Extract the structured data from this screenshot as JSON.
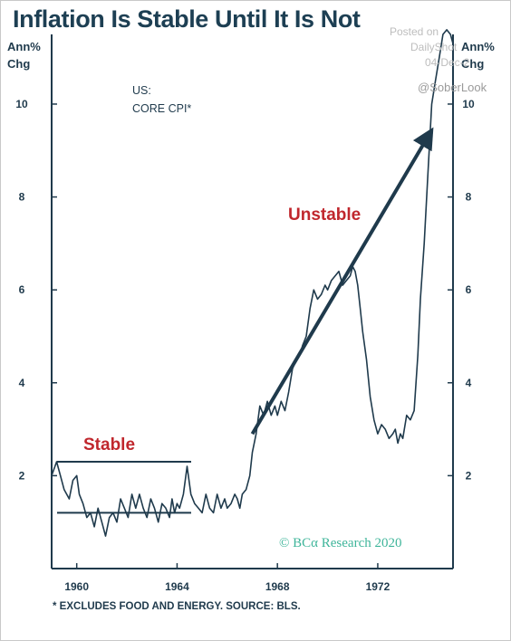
{
  "page": {
    "title": "Inflation Is Stable Until It Is Not",
    "unit_left": [
      "Ann%",
      "Chg"
    ],
    "unit_right": [
      "Ann%",
      "Chg"
    ],
    "watermark": [
      "Posted on",
      "DailyShot",
      "04-Dec-2"
    ],
    "social_handle": "@SoberLook",
    "footnote": "* EXCLUDES FOOD AND ENERGY. SOURCE: BLS.",
    "copyright": "© BCα Research 2020",
    "colors": {
      "title": "#1d3f53",
      "line": "#1f3a4c",
      "annotation": "#c0272d",
      "copyright": "#3fb59a"
    }
  },
  "chart_data": {
    "type": "line",
    "title": "Inflation Is Stable Until It Is Not",
    "series": [
      {
        "name": "CORE CPI*",
        "x": [
          1959.0,
          1959.2,
          1959.35,
          1959.5,
          1959.7,
          1959.85,
          1960.0,
          1960.1,
          1960.25,
          1960.4,
          1960.55,
          1960.7,
          1960.85,
          1961.0,
          1961.15,
          1961.3,
          1961.45,
          1961.6,
          1961.75,
          1961.9,
          1962.05,
          1962.2,
          1962.35,
          1962.5,
          1962.65,
          1962.8,
          1962.95,
          1963.1,
          1963.25,
          1963.4,
          1963.55,
          1963.7,
          1963.8,
          1963.9,
          1964.0,
          1964.1,
          1964.25,
          1964.4,
          1964.55,
          1964.7,
          1964.85,
          1965.0,
          1965.15,
          1965.3,
          1965.45,
          1965.6,
          1965.75,
          1965.9,
          1966.0,
          1966.15,
          1966.3,
          1966.4,
          1966.5,
          1966.6,
          1966.75,
          1966.9,
          1967.0,
          1967.15,
          1967.3,
          1967.45,
          1967.6,
          1967.75,
          1967.9,
          1968.0,
          1968.15,
          1968.3,
          1968.45,
          1968.6,
          1968.75,
          1968.9,
          1969.0,
          1969.15,
          1969.3,
          1969.45,
          1969.6,
          1969.75,
          1969.9,
          1970.0,
          1970.15,
          1970.3,
          1970.45,
          1970.6,
          1970.75,
          1970.9,
          1971.0,
          1971.1,
          1971.2,
          1971.3,
          1971.4,
          1971.55,
          1971.7,
          1971.85,
          1972.0,
          1972.15,
          1972.3,
          1972.45,
          1972.6,
          1972.7,
          1972.8,
          1972.9,
          1973.0,
          1973.15,
          1973.3,
          1973.45,
          1973.6,
          1973.7,
          1973.85,
          1974.0,
          1974.15,
          1974.3,
          1974.45,
          1974.6,
          1974.75,
          1974.9,
          1975.0
        ],
        "y": [
          2.0,
          2.3,
          2.0,
          1.7,
          1.5,
          1.9,
          2.0,
          1.6,
          1.4,
          1.1,
          1.2,
          0.9,
          1.3,
          1.0,
          0.7,
          1.1,
          1.2,
          1.0,
          1.5,
          1.3,
          1.1,
          1.6,
          1.3,
          1.6,
          1.3,
          1.1,
          1.5,
          1.3,
          1.0,
          1.4,
          1.3,
          1.1,
          1.5,
          1.2,
          1.4,
          1.3,
          1.6,
          2.2,
          1.6,
          1.4,
          1.3,
          1.2,
          1.6,
          1.3,
          1.2,
          1.6,
          1.3,
          1.5,
          1.3,
          1.4,
          1.6,
          1.5,
          1.3,
          1.6,
          1.7,
          2.0,
          2.5,
          2.9,
          3.5,
          3.3,
          3.6,
          3.3,
          3.5,
          3.3,
          3.6,
          3.4,
          3.8,
          4.3,
          4.5,
          4.6,
          4.8,
          5.0,
          5.6,
          6.0,
          5.8,
          5.9,
          6.1,
          6.0,
          6.2,
          6.3,
          6.4,
          6.1,
          6.2,
          6.3,
          6.5,
          6.4,
          6.1,
          5.6,
          5.1,
          4.5,
          3.7,
          3.2,
          2.9,
          3.1,
          3.0,
          2.8,
          2.9,
          3.0,
          2.7,
          2.9,
          2.8,
          3.3,
          3.2,
          3.4,
          4.6,
          5.8,
          7.0,
          8.5,
          10.0,
          10.5,
          11.0,
          11.5,
          11.6,
          11.5,
          11.3
        ]
      }
    ],
    "series_label": [
      "US:",
      "CORE CPI*"
    ],
    "xlim": [
      1959.0,
      1975.0
    ],
    "ylim": [
      0,
      11.5
    ],
    "x_ticks": [
      1960,
      1964,
      1968,
      1972
    ],
    "y_ticks": [
      2,
      4,
      6,
      8,
      10
    ],
    "grid": false,
    "annotations": [
      {
        "text": "Stable",
        "color": "#c0272d",
        "range": [
          1.2,
          2.3
        ]
      },
      {
        "text": "Unstable",
        "color": "#c0272d",
        "arrow_from": [
          1967.0,
          2.9
        ],
        "arrow_to": [
          1974.0,
          9.3
        ]
      }
    ]
  }
}
